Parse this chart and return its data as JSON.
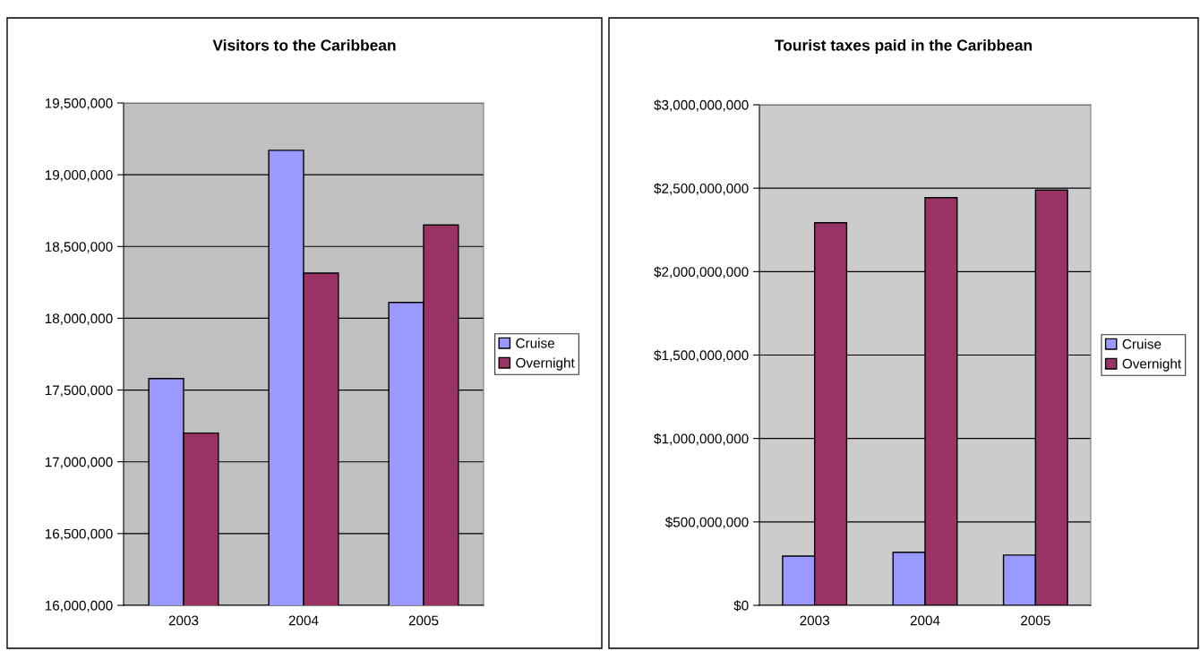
{
  "chart_data": [
    {
      "type": "bar",
      "title": "Visitors to the Caribbean",
      "categories": [
        "2003",
        "2004",
        "2005"
      ],
      "series": [
        {
          "name": "Cruise",
          "color": "#9999ff",
          "values": [
            17580000,
            19170000,
            18110000
          ]
        },
        {
          "name": "Overnight",
          "color": "#993366",
          "values": [
            17200000,
            18315000,
            18650000
          ]
        }
      ],
      "ylim": [
        16000000,
        19500000
      ],
      "yticks": [
        {
          "value": 16000000,
          "label": "16,000,000"
        },
        {
          "value": 16500000,
          "label": "16,500,000"
        },
        {
          "value": 17000000,
          "label": "17,000,000"
        },
        {
          "value": 17500000,
          "label": "17,500,000"
        },
        {
          "value": 18000000,
          "label": "18,000,000"
        },
        {
          "value": 18500000,
          "label": "18,500,000"
        },
        {
          "value": 19000000,
          "label": "19,000,000"
        },
        {
          "value": 19500000,
          "label": "19,500,000"
        }
      ],
      "grid": "y",
      "legend": "right"
    },
    {
      "type": "bar",
      "title": "Tourist taxes paid in the Caribbean",
      "categories": [
        "2003",
        "2004",
        "2005"
      ],
      "series": [
        {
          "name": "Cruise",
          "color": "#9999ff",
          "values": [
            295000000,
            318000000,
            301000000
          ]
        },
        {
          "name": "Overnight",
          "color": "#993366",
          "values": [
            2293000000,
            2443000000,
            2489000000
          ]
        }
      ],
      "ylim": [
        0,
        3000000000
      ],
      "yticks": [
        {
          "value": 0,
          "label": "$0"
        },
        {
          "value": 500000000,
          "label": "$500,000,000"
        },
        {
          "value": 1000000000,
          "label": "$1,000,000,000"
        },
        {
          "value": 1500000000,
          "label": "$1,500,000,000"
        },
        {
          "value": 2000000000,
          "label": "$2,000,000,000"
        },
        {
          "value": 2500000000,
          "label": "$2,500,000,000"
        },
        {
          "value": 3000000000,
          "label": "$3,000,000,000"
        }
      ],
      "grid": "y",
      "legend": "right"
    }
  ]
}
